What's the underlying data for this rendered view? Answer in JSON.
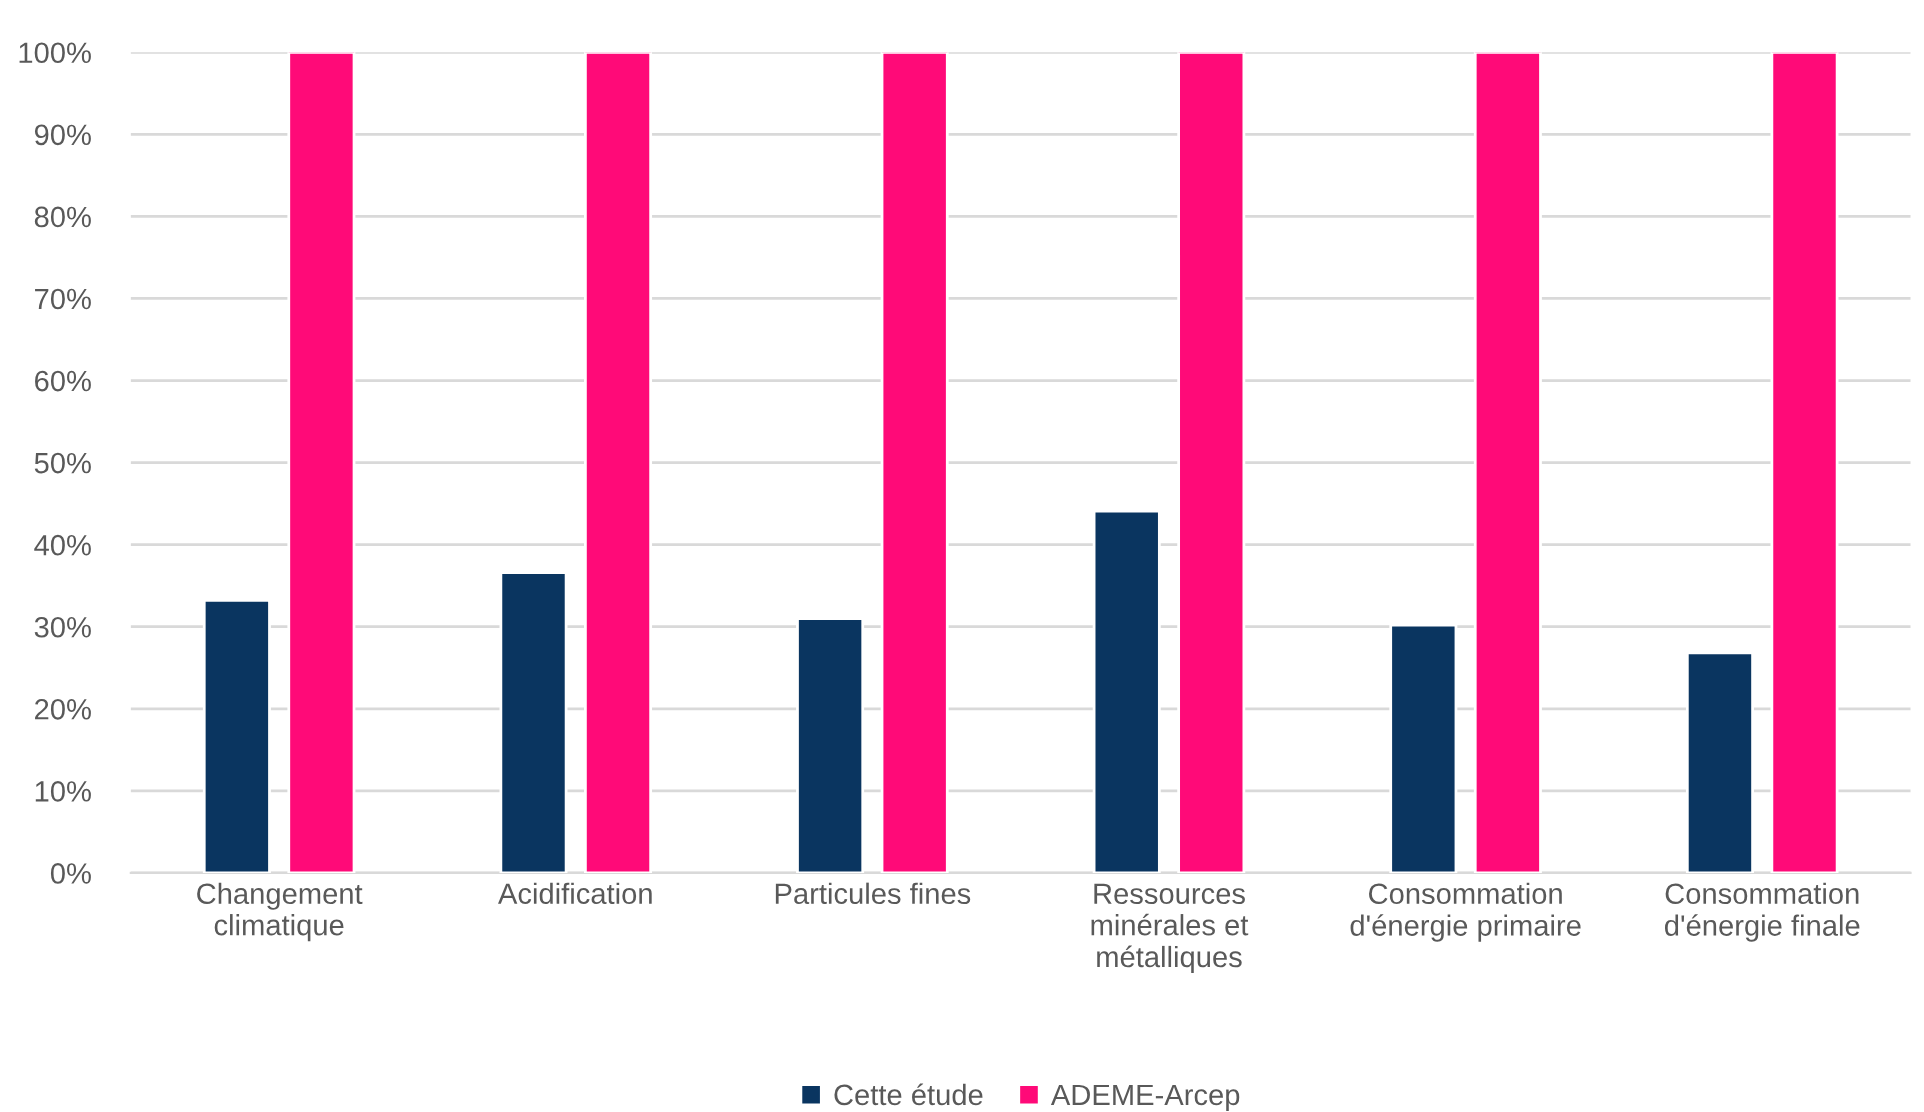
{
  "chart_data": {
    "type": "bar",
    "categories": [
      "Changement\nclimatique",
      "Acidification",
      "Particules fines",
      "Ressources\nminérales et\nmétalliques",
      "Consommation\nd'énergie primaire",
      "Consommation\nd'énergie finale"
    ],
    "series": [
      {
        "name": "Cette étude",
        "color": "#0a3560",
        "values": [
          33.2,
          36.6,
          31.0,
          44.1,
          30.2,
          26.8
        ]
      },
      {
        "name": "ADEME-Arcep",
        "color": "#ff0a78",
        "values": [
          100,
          100,
          100,
          100,
          100,
          100
        ]
      }
    ],
    "ylim": [
      0,
      100
    ],
    "yticks": [
      {
        "value": 0,
        "label": "0%"
      },
      {
        "value": 10,
        "label": "10%"
      },
      {
        "value": 20,
        "label": "20%"
      },
      {
        "value": 30,
        "label": "30%"
      },
      {
        "value": 40,
        "label": "40%"
      },
      {
        "value": 50,
        "label": "50%"
      },
      {
        "value": 60,
        "label": "60%"
      },
      {
        "value": 70,
        "label": "70%"
      },
      {
        "value": 80,
        "label": "80%"
      },
      {
        "value": 90,
        "label": "90%"
      },
      {
        "value": 100,
        "label": "100%"
      }
    ],
    "grid": "y",
    "legend": "bottom"
  }
}
